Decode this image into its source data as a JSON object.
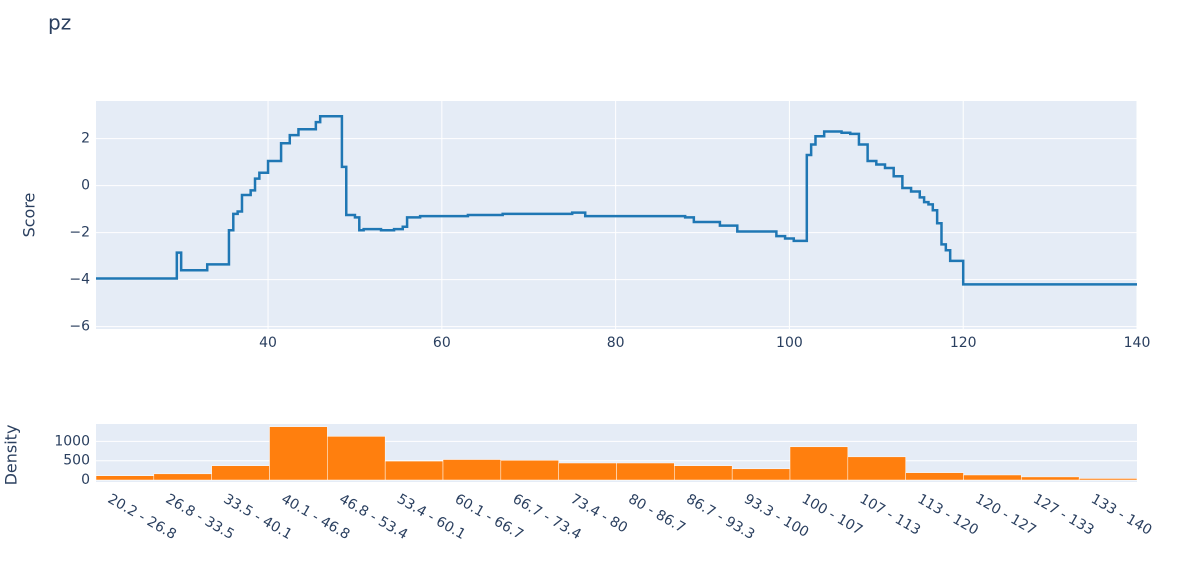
{
  "chart_data": [
    {
      "type": "step",
      "title": "pz",
      "y_label": "Score",
      "color": "#1f77b4",
      "grid": true,
      "x": [
        20.2,
        29.5,
        30,
        33,
        35.5,
        36,
        36.5,
        37,
        38,
        38.5,
        39,
        40,
        41.5,
        42.5,
        43.5,
        45.5,
        46,
        48.5,
        49,
        50,
        50.5,
        51,
        53,
        54.5,
        55.5,
        56,
        57.5,
        63,
        67,
        75,
        76.5,
        85,
        88,
        89,
        92,
        94,
        98.5,
        99.5,
        100.5,
        102,
        102.5,
        103,
        104,
        106,
        107,
        108,
        109,
        110,
        111,
        112,
        113,
        114,
        115,
        115.5,
        116,
        116.5,
        117,
        117.5,
        118,
        118.5,
        120,
        140
      ],
      "values": [
        -3.95,
        -2.85,
        -3.6,
        -3.35,
        -1.9,
        -1.2,
        -1.1,
        -0.4,
        -0.2,
        0.3,
        0.55,
        1.05,
        1.8,
        2.15,
        2.4,
        2.7,
        2.95,
        0.8,
        -1.25,
        -1.35,
        -1.9,
        -1.85,
        -1.9,
        -1.85,
        -1.75,
        -1.35,
        -1.3,
        -1.25,
        -1.2,
        -1.15,
        -1.3,
        -1.3,
        -1.35,
        -1.55,
        -1.7,
        -1.95,
        -2.15,
        -2.25,
        -2.35,
        1.3,
        1.75,
        2.1,
        2.3,
        2.25,
        2.2,
        1.75,
        1.05,
        0.9,
        0.75,
        0.4,
        -0.1,
        -0.25,
        -0.5,
        -0.7,
        -0.8,
        -1.05,
        -1.6,
        -2.5,
        -2.75,
        -3.2,
        -4.2,
        -4.2
      ],
      "xlim": [
        20.2,
        140
      ],
      "xticks": [
        40,
        60,
        80,
        100,
        120,
        140
      ],
      "ylim": [
        -6.1,
        3.6
      ],
      "yticks": [
        {
          "value": -6,
          "label": "−6"
        },
        {
          "value": -4,
          "label": "−4"
        },
        {
          "value": -2,
          "label": "−2"
        },
        0,
        2
      ]
    },
    {
      "type": "bar",
      "y_label": "Density",
      "color": "#ff7f0e",
      "grid": true,
      "categories": [
        "20.2 - 26.8",
        "26.8 - 33.5",
        "33.5 - 40.1",
        "40.1 - 46.8",
        "46.8 - 53.4",
        "53.4 - 60.1",
        "60.1 - 66.7",
        "66.7 - 73.4",
        "73.4 - 80",
        "80 - 86.7",
        "86.7 - 93.3",
        "93.3 - 100",
        "100 - 107",
        "107 - 113",
        "113 - 120",
        "120 - 127",
        "127 - 133",
        "133 - 140"
      ],
      "values": [
        110,
        160,
        370,
        1380,
        1130,
        490,
        530,
        510,
        440,
        440,
        370,
        290,
        860,
        600,
        190,
        130,
        80,
        40
      ],
      "ylim": [
        0,
        1450
      ],
      "yticks": [
        0,
        500,
        1000
      ]
    }
  ]
}
